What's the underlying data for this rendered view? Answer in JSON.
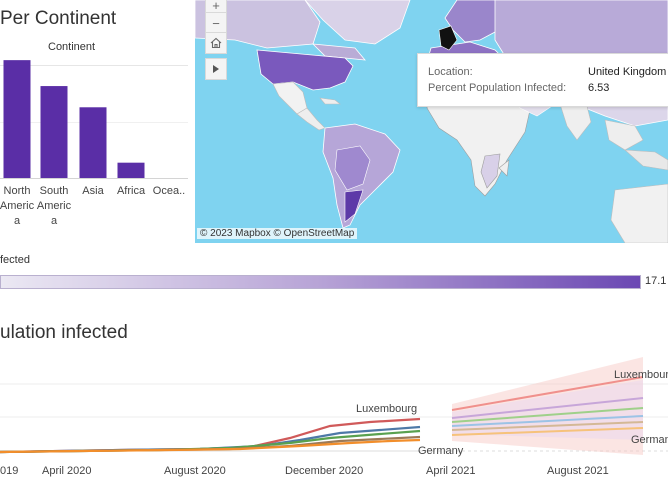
{
  "bar_panel": {
    "title": "Per Continent",
    "column_header": "Continent",
    "categories": [
      {
        "lines": [
          "North",
          "Americ",
          "a"
        ]
      },
      {
        "lines": [
          "South",
          "Americ",
          "a"
        ]
      },
      {
        "lines": [
          "Asia"
        ]
      },
      {
        "lines": [
          "Africa"
        ]
      },
      {
        "lines": [
          "Ocea.."
        ]
      }
    ],
    "bar_color": "#5a2ea6"
  },
  "map": {
    "controls": [
      "+",
      "−",
      "home-icon",
      "play-icon"
    ],
    "credit": "© 2023 Mapbox  © OpenStreetMap",
    "tooltip": {
      "location_key": "Location:",
      "location_value": "United Kingdom",
      "percent_key": "Percent Population Infected:",
      "percent_value": "6.53"
    },
    "water_color": "#7fd3f0"
  },
  "legend": {
    "title": "fected",
    "max_label": "17.1"
  },
  "line_panel": {
    "title": "ulation infected",
    "x_ticks": [
      "019",
      "April 2020",
      "August 2020",
      "December 2020",
      "April 2021",
      "August 2021"
    ],
    "annotations": {
      "actual_top": "Luxembourg",
      "actual_bottom": "Germany",
      "forecast_top": "Luxembourg",
      "forecast_bottom": "Germany"
    }
  },
  "chart_data": {
    "type": "bar",
    "title": "Per Continent",
    "xlabel": "Continent",
    "categories": [
      "North America",
      "South America",
      "Asia",
      "Africa",
      "Ocea.."
    ],
    "values": [
      10.0,
      7.8,
      6.0,
      1.3,
      0
    ],
    "ylim": [
      0,
      14
    ],
    "grid": true
  }
}
